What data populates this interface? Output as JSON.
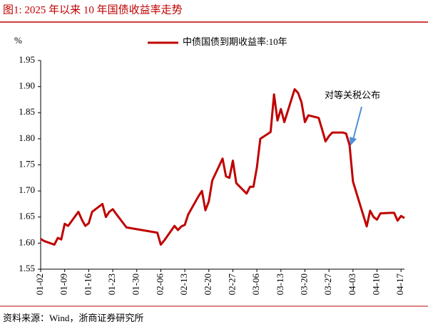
{
  "chart_data": {
    "type": "line",
    "title": "图1:  2025 年以来 10 年国债收益率走势",
    "y_label": "%",
    "source": "资料来源：Wind，浙商证券研究所",
    "annotation": "对等关税公布",
    "x": [
      "01-02",
      "01-03",
      "01-06",
      "01-07",
      "01-08",
      "01-09",
      "01-10",
      "01-13",
      "01-14",
      "01-15",
      "01-16",
      "01-17",
      "01-20",
      "01-21",
      "01-22",
      "01-23",
      "01-24",
      "01-27",
      "02-05",
      "02-06",
      "02-07",
      "02-10",
      "02-11",
      "02-12",
      "02-13",
      "02-14",
      "02-17",
      "02-18",
      "02-19",
      "02-20",
      "02-21",
      "02-24",
      "02-25",
      "02-26",
      "02-27",
      "02-28",
      "03-03",
      "03-04",
      "03-05",
      "03-06",
      "03-07",
      "03-10",
      "03-11",
      "03-12",
      "03-13",
      "03-14",
      "03-17",
      "03-18",
      "03-19",
      "03-20",
      "03-21",
      "03-24",
      "03-25",
      "03-26",
      "03-27",
      "03-28",
      "03-31",
      "04-01",
      "04-02",
      "04-03",
      "04-07",
      "04-08",
      "04-09",
      "04-10",
      "04-11",
      "04-14",
      "04-15",
      "04-16",
      "04-17",
      "04-18"
    ],
    "series": [
      {
        "name": "中债国债到期收益率:10年",
        "color": "#c00000",
        "values": [
          1.608,
          1.604,
          1.597,
          1.61,
          1.607,
          1.637,
          1.633,
          1.66,
          1.645,
          1.633,
          1.638,
          1.66,
          1.675,
          1.65,
          1.66,
          1.665,
          1.656,
          1.63,
          1.62,
          1.597,
          1.605,
          1.633,
          1.625,
          1.632,
          1.635,
          1.655,
          1.69,
          1.7,
          1.663,
          1.68,
          1.72,
          1.762,
          1.728,
          1.725,
          1.758,
          1.715,
          1.695,
          1.708,
          1.708,
          1.745,
          1.8,
          1.813,
          1.885,
          1.835,
          1.857,
          1.832,
          1.895,
          1.888,
          1.87,
          1.832,
          1.845,
          1.84,
          1.818,
          1.795,
          1.805,
          1.812,
          1.812,
          1.81,
          1.788,
          1.718,
          1.632,
          1.662,
          1.65,
          1.645,
          1.657,
          1.658,
          1.658,
          1.643,
          1.652,
          1.648
        ]
      }
    ],
    "xlim": [
      "01-02",
      "04-18"
    ],
    "xticks": [
      "01-02",
      "01-09",
      "01-16",
      "01-23",
      "01-30",
      "02-06",
      "02-13",
      "02-20",
      "02-27",
      "03-06",
      "03-13",
      "03-20",
      "03-27",
      "04-03",
      "04-10",
      "04-17"
    ],
    "ylim": [
      1.55,
      1.95
    ],
    "yticks": [
      1.55,
      {
        "value": 1.6,
        "label": "1.60"
      },
      1.65,
      {
        "value": 1.7,
        "label": "1.70"
      },
      1.75,
      {
        "value": 1.8,
        "label": "1.80"
      },
      1.85,
      {
        "value": 1.9,
        "label": "1.90"
      },
      1.95
    ],
    "grid": false,
    "legend": "top"
  }
}
